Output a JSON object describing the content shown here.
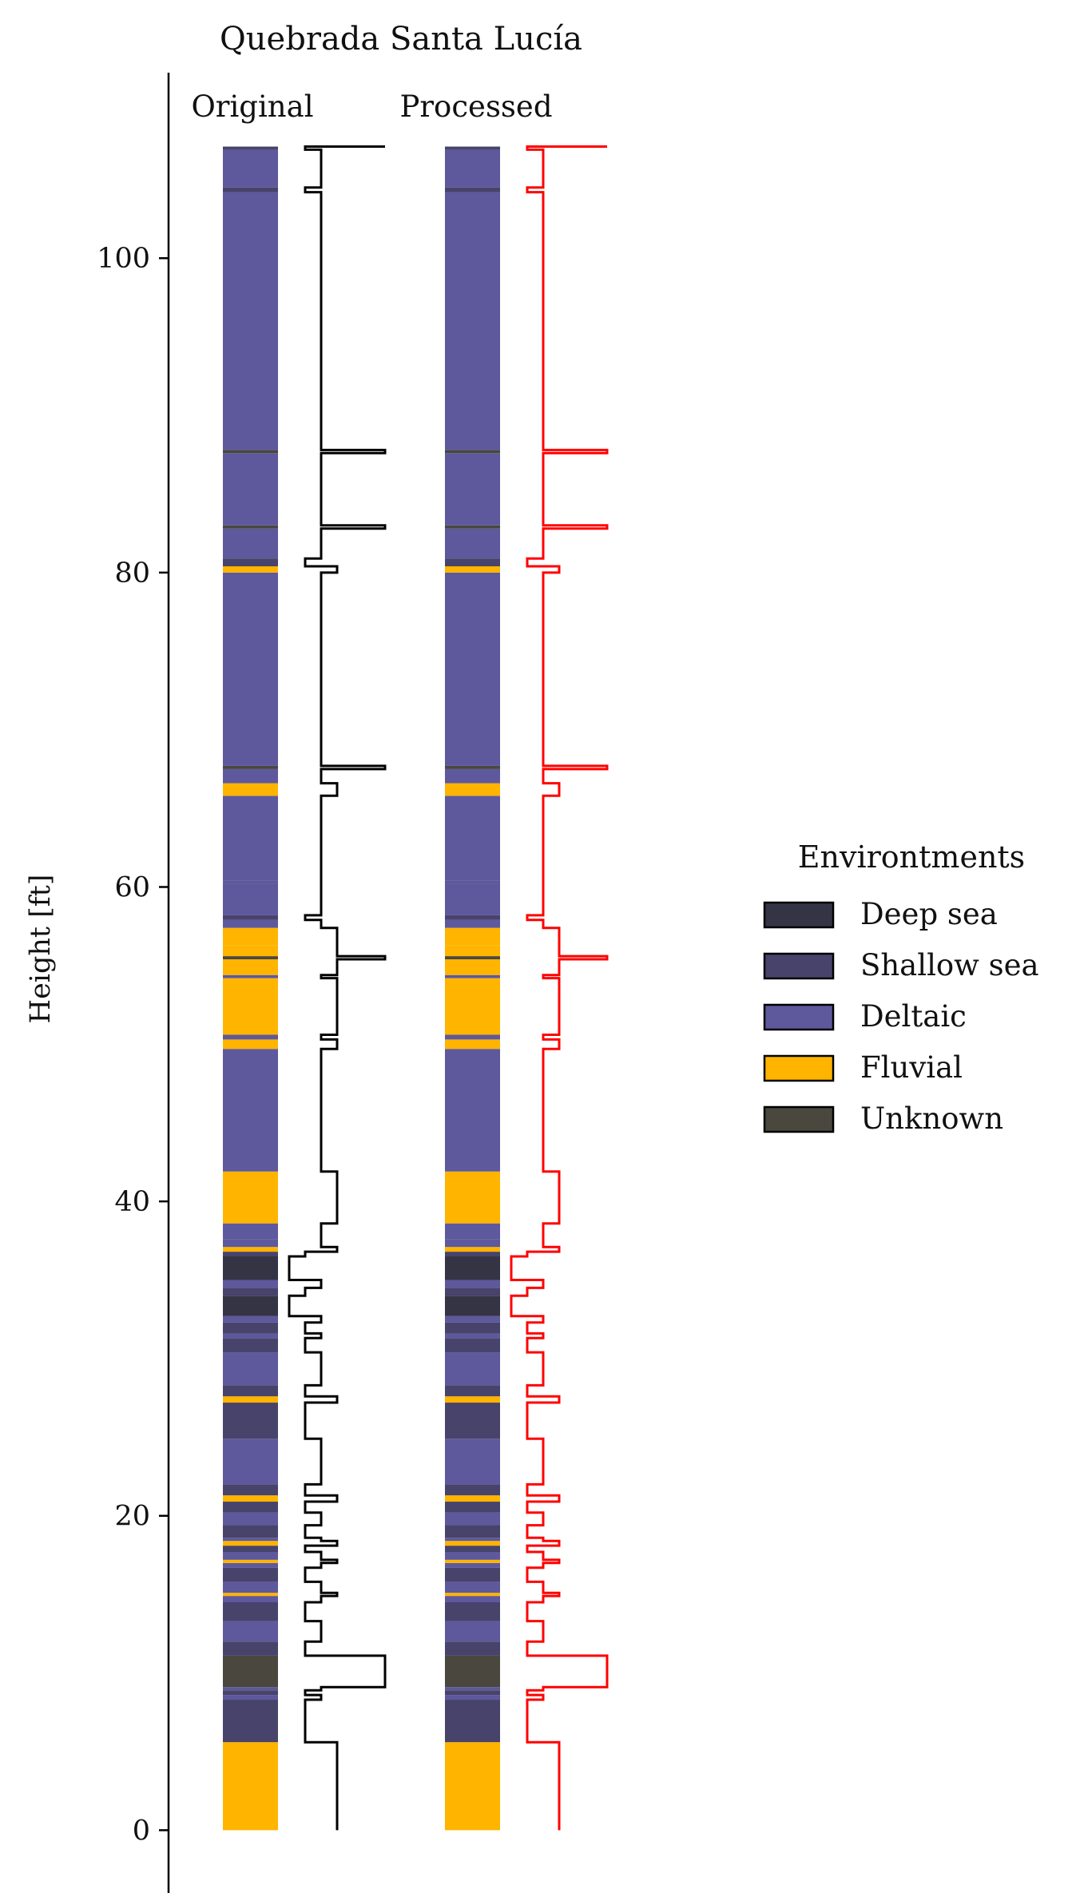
{
  "chart_data": {
    "type": "stratigraphic-column",
    "title": "Quebrada Santa Lucía",
    "ylabel": "Height [ft]",
    "ylim": [
      -4.3,
      111.8
    ],
    "yticks": [
      0,
      20,
      40,
      60,
      80,
      100
    ],
    "grid": false,
    "legend_position": "right",
    "panels": [
      {
        "name": "Original",
        "trace_color": "#000000"
      },
      {
        "name": "Processed",
        "trace_color": "#ff0000"
      }
    ],
    "legend": {
      "title": "Environtments",
      "entries": [
        {
          "key": "deep_sea",
          "label": "Deep sea",
          "color": "#353445"
        },
        {
          "key": "shallow_sea",
          "label": "Shallow sea",
          "color": "#48436b"
        },
        {
          "key": "deltaic",
          "label": "Deltaic",
          "color": "#5e589c"
        },
        {
          "key": "fluvial",
          "label": "Fluvial",
          "color": "#ffb400"
        },
        {
          "key": "unknown",
          "label": "Unknown",
          "color": "#49473e"
        }
      ]
    },
    "trace_levels": {
      "deep_sea": 0,
      "shallow_sea": 1,
      "deltaic": 2,
      "fluvial": 3,
      "unknown": 6
    },
    "layers": [
      {
        "bottom": 0.0,
        "top": 5.6,
        "env": "fluvial"
      },
      {
        "bottom": 5.6,
        "top": 8.3,
        "env": "shallow_sea"
      },
      {
        "bottom": 8.3,
        "top": 8.6,
        "env": "deltaic"
      },
      {
        "bottom": 8.6,
        "top": 8.9,
        "env": "shallow_sea"
      },
      {
        "bottom": 8.9,
        "top": 9.1,
        "env": "deltaic"
      },
      {
        "bottom": 9.1,
        "top": 11.1,
        "env": "unknown"
      },
      {
        "bottom": 11.1,
        "top": 12.0,
        "env": "shallow_sea"
      },
      {
        "bottom": 12.0,
        "top": 13.3,
        "env": "deltaic"
      },
      {
        "bottom": 13.3,
        "top": 14.5,
        "env": "shallow_sea"
      },
      {
        "bottom": 14.5,
        "top": 14.9,
        "env": "deltaic"
      },
      {
        "bottom": 14.9,
        "top": 15.1,
        "env": "fluvial"
      },
      {
        "bottom": 15.1,
        "top": 15.8,
        "env": "deltaic"
      },
      {
        "bottom": 15.8,
        "top": 16.7,
        "env": "shallow_sea"
      },
      {
        "bottom": 16.7,
        "top": 17.0,
        "env": "deltaic"
      },
      {
        "bottom": 17.0,
        "top": 17.2,
        "env": "fluvial"
      },
      {
        "bottom": 17.2,
        "top": 17.7,
        "env": "deltaic"
      },
      {
        "bottom": 17.7,
        "top": 18.1,
        "env": "shallow_sea"
      },
      {
        "bottom": 18.1,
        "top": 18.4,
        "env": "fluvial"
      },
      {
        "bottom": 18.4,
        "top": 18.6,
        "env": "deltaic"
      },
      {
        "bottom": 18.6,
        "top": 19.4,
        "env": "shallow_sea"
      },
      {
        "bottom": 19.4,
        "top": 20.2,
        "env": "deltaic"
      },
      {
        "bottom": 20.2,
        "top": 20.9,
        "env": "shallow_sea"
      },
      {
        "bottom": 20.9,
        "top": 21.3,
        "env": "fluvial"
      },
      {
        "bottom": 21.3,
        "top": 22.0,
        "env": "shallow_sea"
      },
      {
        "bottom": 22.0,
        "top": 24.9,
        "env": "deltaic"
      },
      {
        "bottom": 24.9,
        "top": 27.2,
        "env": "shallow_sea"
      },
      {
        "bottom": 27.2,
        "top": 27.6,
        "env": "fluvial"
      },
      {
        "bottom": 27.6,
        "top": 28.3,
        "env": "shallow_sea"
      },
      {
        "bottom": 28.3,
        "top": 30.4,
        "env": "deltaic"
      },
      {
        "bottom": 30.4,
        "top": 31.3,
        "env": "shallow_sea"
      },
      {
        "bottom": 31.3,
        "top": 31.6,
        "env": "deltaic"
      },
      {
        "bottom": 31.6,
        "top": 32.3,
        "env": "shallow_sea"
      },
      {
        "bottom": 32.3,
        "top": 32.7,
        "env": "deltaic"
      },
      {
        "bottom": 32.7,
        "top": 34.0,
        "env": "deep_sea"
      },
      {
        "bottom": 34.0,
        "top": 34.5,
        "env": "shallow_sea"
      },
      {
        "bottom": 34.5,
        "top": 35.0,
        "env": "deltaic"
      },
      {
        "bottom": 35.0,
        "top": 36.5,
        "env": "deep_sea"
      },
      {
        "bottom": 36.5,
        "top": 36.8,
        "env": "shallow_sea"
      },
      {
        "bottom": 36.8,
        "top": 37.1,
        "env": "fluvial"
      },
      {
        "bottom": 37.1,
        "top": 37.6,
        "env": "deltaic"
      },
      {
        "bottom": 37.6,
        "top": 38.6,
        "env": "deltaic"
      },
      {
        "bottom": 38.6,
        "top": 41.9,
        "env": "fluvial"
      },
      {
        "bottom": 41.9,
        "top": 49.7,
        "env": "deltaic"
      },
      {
        "bottom": 49.7,
        "top": 50.3,
        "env": "fluvial"
      },
      {
        "bottom": 50.3,
        "top": 50.6,
        "env": "deltaic"
      },
      {
        "bottom": 50.6,
        "top": 54.2,
        "env": "fluvial"
      },
      {
        "bottom": 54.2,
        "top": 54.4,
        "env": "deltaic"
      },
      {
        "bottom": 54.4,
        "top": 55.4,
        "env": "fluvial"
      },
      {
        "bottom": 55.4,
        "top": 55.6,
        "env": "unknown"
      },
      {
        "bottom": 55.6,
        "top": 56.3,
        "env": "fluvial"
      },
      {
        "bottom": 56.3,
        "top": 56.8,
        "env": "fluvial"
      },
      {
        "bottom": 56.8,
        "top": 57.4,
        "env": "fluvial"
      },
      {
        "bottom": 57.4,
        "top": 57.9,
        "env": "deltaic"
      },
      {
        "bottom": 57.9,
        "top": 58.2,
        "env": "shallow_sea"
      },
      {
        "bottom": 58.2,
        "top": 60.2,
        "env": "deltaic"
      },
      {
        "bottom": 60.2,
        "top": 60.4,
        "env": "deltaic"
      },
      {
        "bottom": 60.4,
        "top": 65.8,
        "env": "deltaic"
      },
      {
        "bottom": 65.8,
        "top": 66.6,
        "env": "fluvial"
      },
      {
        "bottom": 66.6,
        "top": 67.5,
        "env": "deltaic"
      },
      {
        "bottom": 67.5,
        "top": 67.7,
        "env": "unknown"
      },
      {
        "bottom": 67.7,
        "top": 80.0,
        "env": "deltaic"
      },
      {
        "bottom": 80.0,
        "top": 80.4,
        "env": "fluvial"
      },
      {
        "bottom": 80.4,
        "top": 80.9,
        "env": "shallow_sea"
      },
      {
        "bottom": 80.9,
        "top": 82.8,
        "env": "deltaic"
      },
      {
        "bottom": 82.8,
        "top": 83.0,
        "env": "unknown"
      },
      {
        "bottom": 83.0,
        "top": 87.6,
        "env": "deltaic"
      },
      {
        "bottom": 87.6,
        "top": 87.8,
        "env": "unknown"
      },
      {
        "bottom": 87.8,
        "top": 104.2,
        "env": "deltaic"
      },
      {
        "bottom": 104.2,
        "top": 104.5,
        "env": "shallow_sea"
      },
      {
        "bottom": 104.5,
        "top": 106.9,
        "env": "deltaic"
      },
      {
        "bottom": 106.9,
        "top": 107.1,
        "env": "shallow_sea"
      }
    ]
  }
}
